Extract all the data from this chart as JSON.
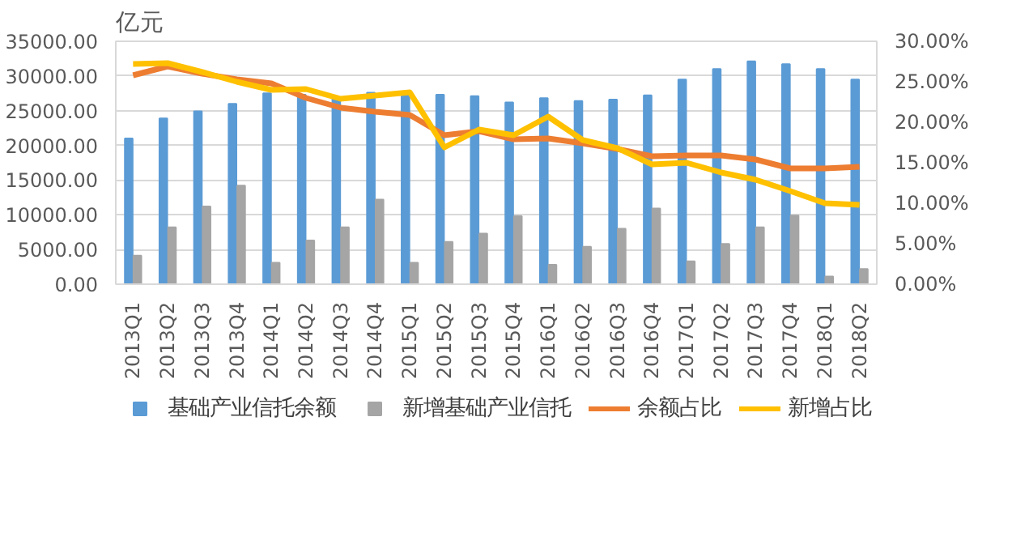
{
  "chart_data": {
    "type": "bar",
    "ylabel": "亿元",
    "categories": [
      "2013Q1",
      "2013Q2",
      "2013Q3",
      "2013Q4",
      "2014Q1",
      "2014Q2",
      "2014Q3",
      "2014Q4",
      "2015Q1",
      "2015Q2",
      "2015Q3",
      "2015Q4",
      "2016Q1",
      "2016Q2",
      "2016Q3",
      "2016Q4",
      "2017Q1",
      "2017Q2",
      "2017Q3",
      "2017Q4",
      "2018Q1",
      "2018Q2"
    ],
    "series": [
      {
        "name": "基础产业信托余额",
        "color": "#5b9bd5",
        "values": [
          21000,
          23900,
          24900,
          26000,
          27500,
          27300,
          26800,
          27600,
          27400,
          27300,
          27100,
          26200,
          26800,
          26400,
          26600,
          27200,
          29500,
          31000,
          32100,
          31700,
          31000,
          29500
        ]
      },
      {
        "name": "新增基础产业信托",
        "color": "#a5a5a5",
        "values": [
          4100,
          8200,
          11200,
          14200,
          3100,
          6300,
          8200,
          12200,
          3100,
          6100,
          7300,
          9800,
          2800,
          5400,
          8000,
          10900,
          3300,
          5800,
          8200,
          9900,
          1100,
          2200
        ]
      },
      {
        "name": "余额占比",
        "type": "line",
        "axis": "y2",
        "color": "#ed7d31",
        "values": [
          25.8,
          26.9,
          26.0,
          25.3,
          24.8,
          23.0,
          21.8,
          21.3,
          20.9,
          18.4,
          18.9,
          17.9,
          18.0,
          17.4,
          16.7,
          15.8,
          15.9,
          15.9,
          15.4,
          14.3,
          14.3,
          14.5
        ]
      },
      {
        "name": "新增占比",
        "type": "line",
        "axis": "y2",
        "color": "#ffc000",
        "values": [
          27.2,
          27.3,
          26.2,
          25.0,
          24.0,
          24.1,
          22.9,
          23.3,
          23.7,
          16.9,
          19.1,
          18.4,
          20.7,
          17.8,
          16.8,
          14.8,
          15.0,
          13.8,
          12.9,
          11.5,
          10.0,
          9.8
        ]
      }
    ],
    "ylim": [
      0,
      35000
    ],
    "yticks": [
      {
        "value": 0,
        "label": "0.00"
      },
      {
        "value": 5000,
        "label": "5000.00"
      },
      {
        "value": 10000,
        "label": "10000.00"
      },
      {
        "value": 15000,
        "label": "15000.00"
      },
      {
        "value": 20000,
        "label": "20000.00"
      },
      {
        "value": 25000,
        "label": "25000.00"
      },
      {
        "value": 30000,
        "label": "30000.00"
      },
      {
        "value": 35000,
        "label": "35000.00"
      }
    ],
    "y2lim": [
      0,
      30
    ],
    "y2ticks": [
      {
        "value": 0,
        "label": "0.00%"
      },
      {
        "value": 5,
        "label": "5.00%"
      },
      {
        "value": 10,
        "label": "10.00%"
      },
      {
        "value": 15,
        "label": "15.00%"
      },
      {
        "value": 20,
        "label": "20.00%"
      },
      {
        "value": 25,
        "label": "25.00%"
      },
      {
        "value": 30,
        "label": "30.00%"
      }
    ],
    "grid": "y",
    "legend": "bottom"
  }
}
